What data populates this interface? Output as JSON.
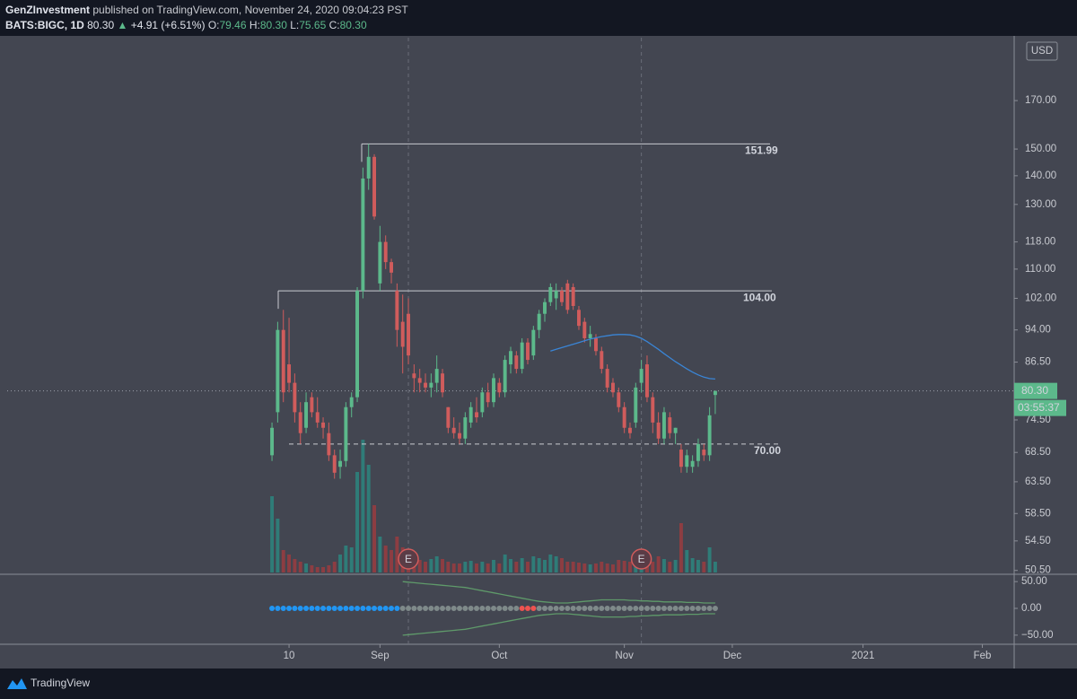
{
  "chart_data": {
    "type": "candlestick",
    "author": "GenZInvestment",
    "published": " published on TradingView.com, November 24, 2020 09:04:23 PST",
    "symbol": "BATS:BIGC, 1D",
    "last": "80.30",
    "arrow": "▲",
    "change": "+4.91 (+6.51%)",
    "ohlc_labels": [
      "O:",
      "H:",
      "L:",
      "C:"
    ],
    "ohlc_values": [
      "79.46",
      "80.30",
      "75.65",
      "80.30"
    ],
    "currency": "USD",
    "countdown": "03:55:37",
    "brand": "TradingView",
    "log_scale": true,
    "up_color": "#5cb98b",
    "down_color": "#d05c5c",
    "ylim": [
      50,
      200
    ],
    "yticks": [
      {
        "value": 50.5,
        "label": "50.50"
      },
      {
        "value": 54.5,
        "label": "54.50"
      },
      {
        "value": 58.5,
        "label": "58.50"
      },
      {
        "value": 63.5,
        "label": "63.50"
      },
      {
        "value": 68.5,
        "label": "68.50"
      },
      {
        "value": 74.5,
        "label": "74.50"
      },
      {
        "value": 86.5,
        "label": "86.50"
      },
      {
        "value": 94,
        "label": "94.00"
      },
      {
        "value": 102,
        "label": "102.00"
      },
      {
        "value": 110,
        "label": "110.00"
      },
      {
        "value": 118,
        "label": "118.00"
      },
      {
        "value": 130,
        "label": "130.00"
      },
      {
        "value": 140,
        "label": "140.00"
      },
      {
        "value": 150,
        "label": "150.00"
      },
      {
        "value": 170,
        "label": "170.00"
      }
    ],
    "xlim": [
      -46.6,
      130.6
    ],
    "xticks": [
      {
        "value": 3,
        "label": "10"
      },
      {
        "value": 19,
        "label": "Sep"
      },
      {
        "value": 40,
        "label": "Oct"
      },
      {
        "value": 62,
        "label": "Nov"
      },
      {
        "value": 81,
        "label": "Dec"
      },
      {
        "value": 104,
        "label": "2021"
      },
      {
        "value": 125,
        "label": "Feb"
      }
    ],
    "open": [
      68,
      76,
      94,
      86,
      82,
      76,
      73,
      79,
      76,
      74,
      72,
      68,
      66,
      67,
      77,
      79,
      104,
      139,
      147,
      106,
      118,
      112,
      104,
      96,
      98,
      84,
      83,
      82,
      81,
      82,
      84,
      77,
      73,
      72,
      71,
      74,
      76,
      76,
      80,
      78,
      82,
      80,
      86,
      88,
      85,
      91,
      88,
      94,
      98,
      101,
      102,
      104,
      106,
      105,
      99,
      96,
      92,
      92,
      89,
      85,
      82,
      80,
      77,
      73,
      74,
      82,
      86,
      79,
      74,
      71,
      75,
      72,
      69,
      66,
      66,
      67,
      69,
      68,
      79.46
    ],
    "high": [
      74,
      96,
      99,
      97,
      84,
      78,
      80,
      80,
      79,
      75,
      74,
      69,
      69,
      78,
      80,
      105,
      143,
      152,
      148,
      123,
      120,
      113,
      106,
      103,
      102,
      86,
      85,
      84,
      84,
      88,
      85,
      77,
      75,
      74,
      76,
      78,
      79,
      81,
      82,
      84,
      83,
      88,
      90,
      89,
      92,
      92,
      95,
      99,
      102,
      106,
      106,
      105,
      107,
      106,
      100,
      97,
      95,
      93,
      90,
      86,
      83,
      81,
      78,
      74,
      82,
      87,
      88,
      80,
      76,
      77,
      76,
      73,
      70,
      69,
      68,
      71,
      70,
      77,
      80.3
    ],
    "low": [
      67,
      74,
      78,
      80,
      74,
      70,
      72,
      75,
      73,
      71,
      67,
      64,
      64,
      66,
      75,
      78,
      102,
      135,
      125,
      104,
      110,
      106,
      90,
      84,
      86,
      80,
      80,
      80,
      79,
      80,
      79,
      72,
      71,
      70,
      70,
      73,
      74,
      75,
      77,
      77,
      79,
      79,
      84,
      84,
      84,
      86,
      87,
      92,
      96,
      100,
      99,
      100,
      98,
      99,
      94,
      91,
      90,
      88,
      84,
      80,
      79,
      76,
      72,
      71,
      73,
      80,
      78,
      72,
      70,
      70,
      71,
      70,
      65,
      65,
      65,
      66,
      67,
      67,
      75.65
    ],
    "close": [
      73,
      94,
      80,
      82,
      76,
      72,
      78,
      76,
      74,
      73,
      68,
      65,
      67,
      77,
      79,
      104,
      139,
      147,
      126,
      118,
      112,
      109,
      94,
      90,
      88,
      83,
      82,
      81,
      82,
      85,
      80,
      73,
      72,
      71,
      75,
      77,
      75,
      80,
      78,
      83,
      80,
      87,
      89,
      85,
      91,
      87,
      94,
      98,
      101,
      105,
      104,
      101,
      99,
      100,
      95,
      92,
      93,
      89,
      85,
      81,
      80,
      77,
      73,
      72,
      81,
      85,
      79,
      74,
      71,
      76,
      72,
      73,
      66,
      68,
      67,
      70,
      68,
      75.39,
      80.3
    ],
    "volume": {
      "values": [
        8.5,
        6.0,
        2.5,
        2.0,
        1.5,
        1.2,
        1.0,
        0.8,
        0.6,
        0.6,
        0.8,
        1.2,
        2.0,
        3.0,
        2.8,
        11.2,
        14.8,
        12.0,
        7.5,
        4.0,
        3.0,
        2.5,
        4.0,
        2.8,
        2.0,
        1.6,
        1.4,
        1.2,
        1.5,
        1.8,
        1.5,
        1.2,
        1.0,
        1.0,
        1.2,
        1.3,
        1.0,
        1.2,
        1.0,
        1.4,
        1.0,
        2.0,
        1.5,
        1.2,
        1.6,
        1.2,
        1.8,
        1.6,
        1.4,
        2.0,
        1.8,
        1.6,
        1.2,
        1.2,
        1.1,
        1.0,
        0.9,
        1.0,
        1.2,
        1.0,
        0.9,
        1.4,
        1.3,
        1.2,
        1.6,
        2.0,
        1.5,
        1.2,
        1.8,
        1.5,
        1.2,
        1.4,
        5.5,
        2.5,
        1.6,
        1.4,
        1.2,
        2.8,
        1.2
      ],
      "up_color": "#2f7c78",
      "down_color": "#8d3d42"
    },
    "ma": {
      "color": "#3a85d6",
      "values": [
        null,
        null,
        null,
        null,
        null,
        null,
        null,
        null,
        null,
        null,
        null,
        null,
        null,
        null,
        null,
        null,
        null,
        null,
        null,
        null,
        null,
        null,
        null,
        null,
        null,
        null,
        null,
        null,
        null,
        null,
        null,
        null,
        null,
        null,
        null,
        null,
        null,
        null,
        null,
        null,
        null,
        null,
        null,
        null,
        null,
        null,
        null,
        null,
        null,
        89.0,
        89.4,
        89.8,
        90.2,
        90.6,
        91.0,
        91.4,
        91.8,
        92.1,
        92.4,
        92.6,
        92.8,
        92.9,
        92.9,
        92.8,
        92.5,
        92.0,
        91.2,
        90.3,
        89.4,
        88.4,
        87.5,
        86.6,
        85.8,
        85.0,
        84.3,
        83.7,
        83.2,
        82.9,
        82.8
      ]
    },
    "levels": [
      {
        "value": 151.99,
        "label": "151.99",
        "style": "solid"
      },
      {
        "value": 104,
        "label": "104.00",
        "style": "solid"
      },
      {
        "value": 70,
        "label": "70.00",
        "style": "dashed"
      }
    ],
    "events": [
      {
        "index": 24,
        "label": "E"
      },
      {
        "index": 65,
        "label": "E"
      }
    ],
    "indicator": {
      "ylim": [
        -67,
        62
      ],
      "yticks": [
        {
          "value": 50,
          "label": "50.00"
        },
        {
          "value": 0,
          "label": "0.00"
        },
        {
          "value": -50,
          "label": "−50.00"
        }
      ],
      "band_color": "#5f9a6a",
      "upper": [
        null,
        null,
        null,
        null,
        null,
        null,
        null,
        null,
        null,
        null,
        null,
        null,
        null,
        null,
        null,
        null,
        null,
        null,
        null,
        null,
        null,
        null,
        null,
        50,
        49,
        48,
        47,
        46,
        45,
        44,
        43,
        42,
        41,
        40,
        39,
        37,
        35,
        33,
        31,
        29,
        27,
        25,
        23,
        21,
        19,
        17,
        15,
        13,
        12,
        11,
        10,
        10,
        10,
        11,
        12,
        13,
        14,
        15,
        16,
        16,
        16,
        16,
        16,
        15,
        15,
        14,
        14,
        13,
        13,
        12,
        12,
        12,
        12,
        11,
        11,
        11,
        10,
        10,
        10
      ],
      "lower": [
        null,
        null,
        null,
        null,
        null,
        null,
        null,
        null,
        null,
        null,
        null,
        null,
        null,
        null,
        null,
        null,
        null,
        null,
        null,
        null,
        null,
        null,
        null,
        -50,
        -49,
        -48,
        -47,
        -46,
        -45,
        -44,
        -43,
        -42,
        -41,
        -40,
        -39,
        -37,
        -35,
        -33,
        -31,
        -29,
        -27,
        -25,
        -23,
        -21,
        -19,
        -17,
        -15,
        -13,
        -12,
        -11,
        -10,
        -10,
        -10,
        -11,
        -12,
        -13,
        -14,
        -15,
        -16,
        -16,
        -16,
        -16,
        -16,
        -15,
        -15,
        -14,
        -14,
        -13,
        -13,
        -12,
        -12,
        -12,
        -12,
        -11,
        -11,
        -11,
        -10,
        -10,
        -10
      ],
      "values": [
        0,
        0,
        0,
        0,
        0,
        0,
        0,
        0,
        0,
        0,
        0,
        0,
        0,
        0,
        0,
        0,
        0,
        0,
        0,
        0,
        0,
        0,
        0,
        0,
        0,
        0,
        0,
        0,
        0,
        0,
        0,
        0,
        0,
        0,
        0,
        0,
        0,
        0,
        0,
        0,
        0,
        0,
        0,
        0,
        0,
        0,
        0,
        0,
        0,
        0,
        0,
        0,
        0,
        0,
        0,
        0,
        0,
        0,
        0,
        0,
        0,
        0,
        0,
        0,
        0,
        0,
        0,
        0,
        0,
        0,
        0,
        0,
        0,
        0,
        0,
        0,
        0,
        0,
        0
      ],
      "colors": [
        "#2196f3",
        "#2196f3",
        "#2196f3",
        "#2196f3",
        "#2196f3",
        "#2196f3",
        "#2196f3",
        "#2196f3",
        "#2196f3",
        "#2196f3",
        "#2196f3",
        "#2196f3",
        "#2196f3",
        "#2196f3",
        "#2196f3",
        "#2196f3",
        "#2196f3",
        "#2196f3",
        "#2196f3",
        "#2196f3",
        "#2196f3",
        "#2196f3",
        "#2196f3",
        "#7f8a8a",
        "#7f8a8a",
        "#7f8a8a",
        "#7f8a8a",
        "#7f8a8a",
        "#7f8a8a",
        "#7f8a8a",
        "#7f8a8a",
        "#7f8a8a",
        "#7f8a8a",
        "#7f8a8a",
        "#7f8a8a",
        "#7f8a8a",
        "#7f8a8a",
        "#7f8a8a",
        "#7f8a8a",
        "#7f8a8a",
        "#7f8a8a",
        "#7f8a8a",
        "#7f8a8a",
        "#7f8a8a",
        "#ef5350",
        "#ef5350",
        "#ef5350",
        "#7f8a8a",
        "#7f8a8a",
        "#7f8a8a",
        "#7f8a8a",
        "#7f8a8a",
        "#7f8a8a",
        "#7f8a8a",
        "#7f8a8a",
        "#7f8a8a",
        "#7f8a8a",
        "#7f8a8a",
        "#7f8a8a",
        "#7f8a8a",
        "#7f8a8a",
        "#7f8a8a",
        "#7f8a8a",
        "#7f8a8a",
        "#7f8a8a",
        "#7f8a8a",
        "#7f8a8a",
        "#7f8a8a",
        "#7f8a8a",
        "#7f8a8a",
        "#7f8a8a",
        "#7f8a8a",
        "#7f8a8a",
        "#7f8a8a",
        "#7f8a8a",
        "#7f8a8a",
        "#7f8a8a",
        "#7f8a8a",
        "#7f8a8a"
      ]
    }
  }
}
